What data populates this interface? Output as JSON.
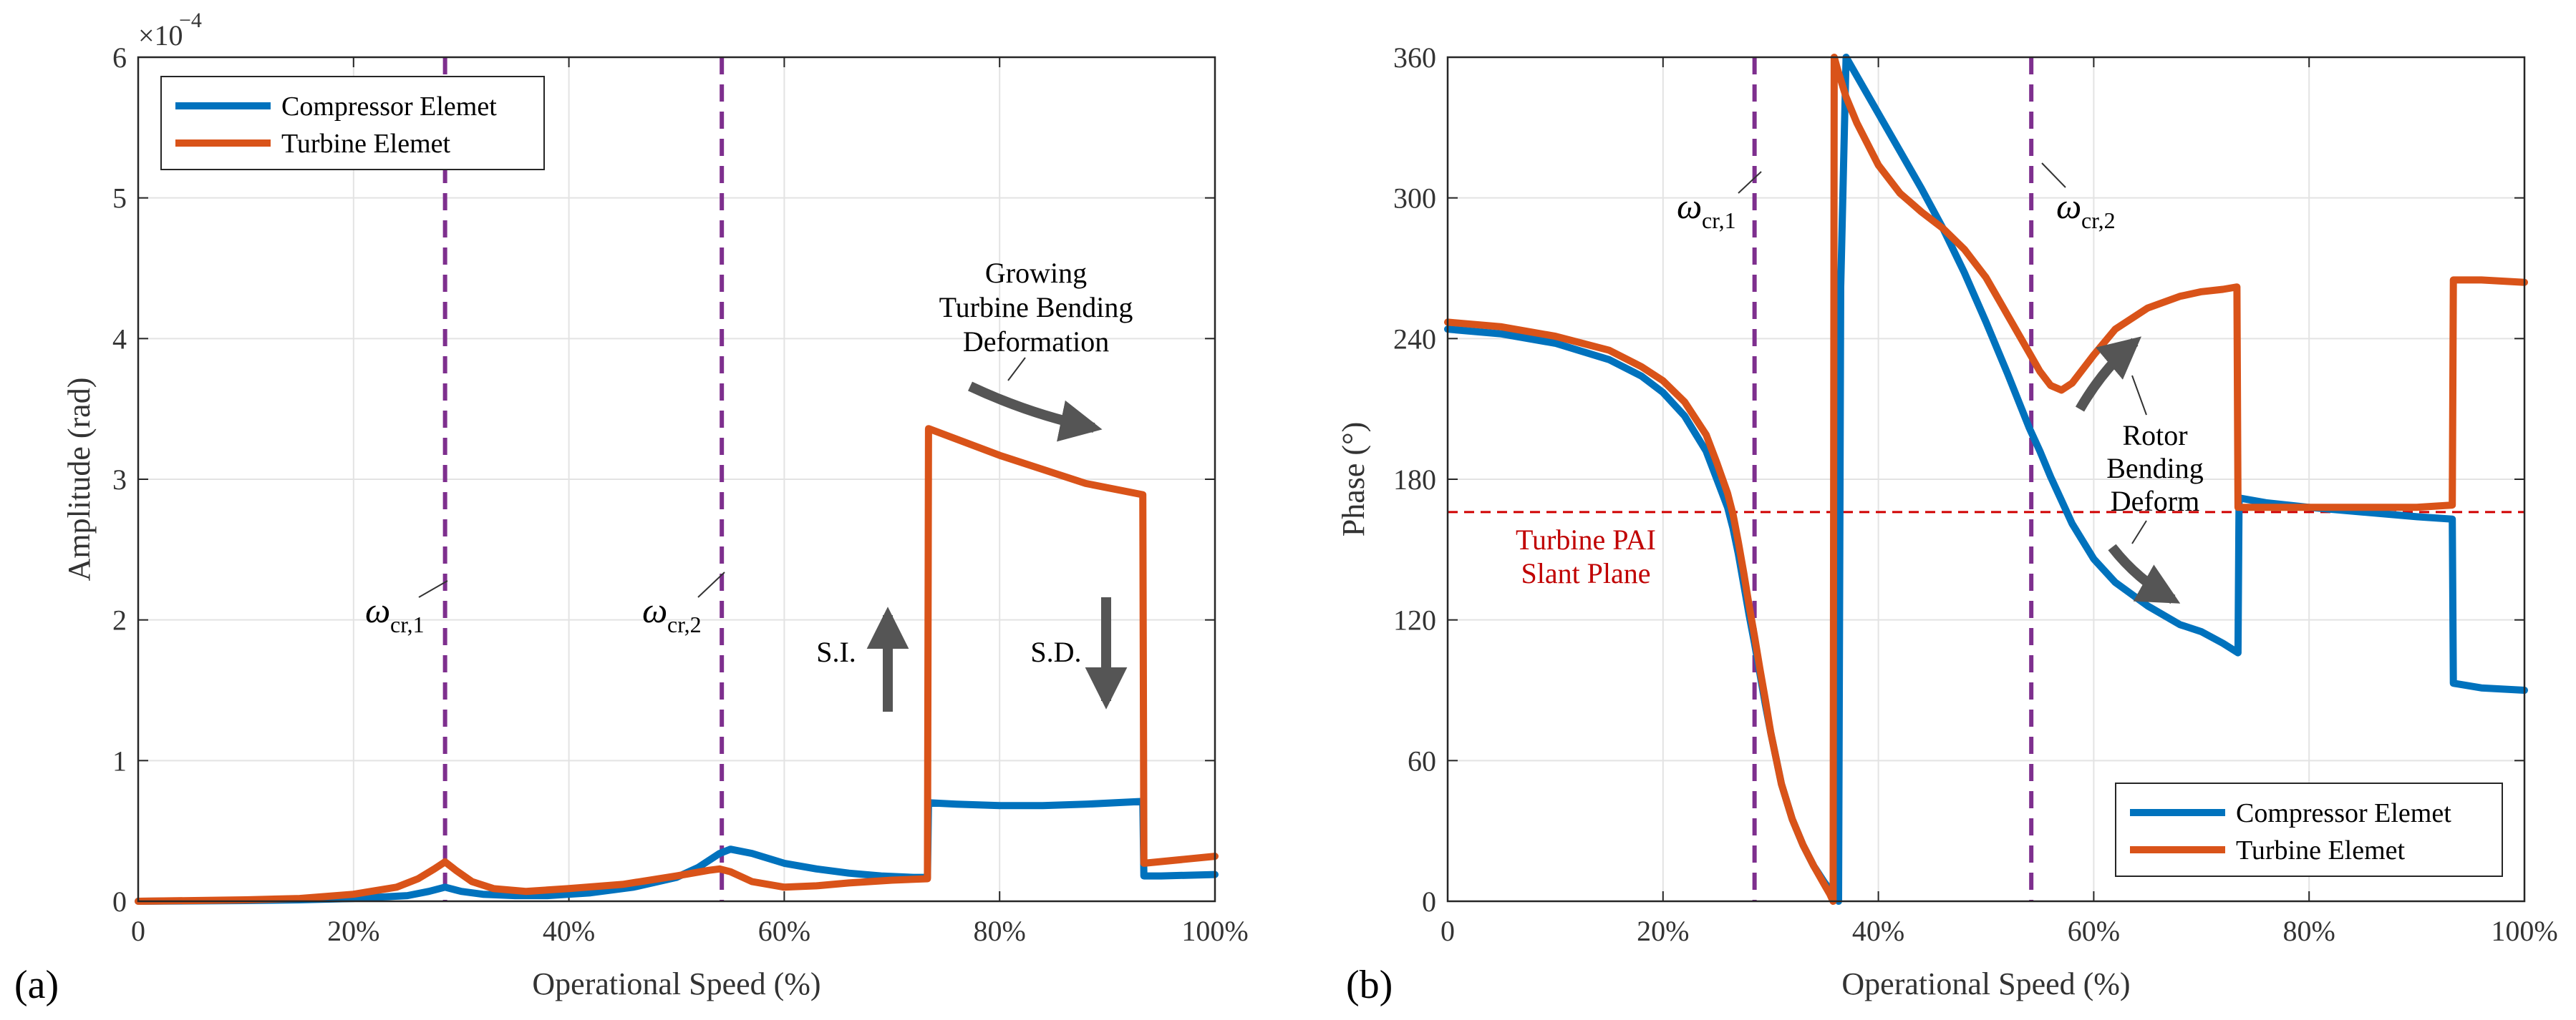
{
  "figure": {
    "panel_labels": [
      "(a)",
      "(b)"
    ]
  },
  "colors": {
    "compressor": "#0072BD",
    "turbine": "#D95319",
    "critical": "#7E2F8E",
    "pai": "#D00000",
    "arrow": "#555555",
    "grid": "#e3e3e3"
  },
  "chart_data": [
    {
      "type": "line",
      "panel": "(a)",
      "xlabel": "Operational Speed (%)",
      "ylabel": "Amplitude (rad)",
      "xlim": [
        0,
        100
      ],
      "ylim": [
        0,
        6
      ],
      "x_ticks": [
        "0",
        "20%",
        "40%",
        "60%",
        "80%",
        "100%"
      ],
      "y_ticks": [
        "0",
        "1",
        "2",
        "3",
        "4",
        "5",
        "6"
      ],
      "y_exponent": {
        "base": "×10",
        "power": "−4"
      },
      "grid": true,
      "legend_position": "top-left",
      "series": [
        {
          "name": "Compressor Elemet",
          "x": [
            0,
            10,
            15,
            20,
            25,
            27,
            28.5,
            30,
            32,
            35,
            38,
            42,
            46,
            50,
            52,
            54,
            55,
            57,
            60,
            63,
            66,
            69,
            72,
            73.3,
            73.4,
            76,
            80,
            84,
            88,
            93.3,
            93.4,
            95,
            100
          ],
          "y": [
            0,
            0.005,
            0.01,
            0.02,
            0.04,
            0.07,
            0.1,
            0.07,
            0.05,
            0.04,
            0.04,
            0.06,
            0.1,
            0.17,
            0.24,
            0.34,
            0.37,
            0.34,
            0.27,
            0.23,
            0.2,
            0.18,
            0.17,
            0.17,
            0.7,
            0.69,
            0.68,
            0.68,
            0.69,
            0.71,
            0.18,
            0.18,
            0.19
          ]
        },
        {
          "name": "Turbine Elemet",
          "x": [
            0,
            10,
            15,
            20,
            24,
            26,
            27.5,
            28.5,
            29.5,
            31,
            33,
            36,
            40,
            45,
            50,
            53,
            54,
            55,
            57,
            60,
            63,
            66,
            70,
            73.3,
            73.4,
            80,
            88,
            93.3,
            93.4,
            100
          ],
          "y": [
            0,
            0.01,
            0.02,
            0.05,
            0.1,
            0.16,
            0.23,
            0.28,
            0.22,
            0.14,
            0.09,
            0.07,
            0.09,
            0.12,
            0.18,
            0.22,
            0.23,
            0.21,
            0.14,
            0.1,
            0.11,
            0.13,
            0.15,
            0.16,
            3.36,
            3.17,
            2.97,
            2.89,
            0.27,
            0.32
          ]
        }
      ],
      "vlines": [
        {
          "x": 28.5,
          "label": "ω",
          "sub": "cr,1"
        },
        {
          "x": 54.2,
          "label": "ω",
          "sub": "cr,2"
        }
      ],
      "annotations": [
        {
          "id": "growing",
          "lines": [
            "Growing",
            "Turbine Bending",
            "Deformation"
          ]
        },
        {
          "id": "si",
          "text": "S.I."
        },
        {
          "id": "sd",
          "text": "S.D."
        }
      ]
    },
    {
      "type": "line",
      "panel": "(b)",
      "xlabel": "Operational Speed (%)",
      "ylabel": "Phase (°)",
      "xlim": [
        0,
        100
      ],
      "ylim": [
        0,
        360
      ],
      "x_ticks": [
        "0",
        "20%",
        "40%",
        "60%",
        "80%",
        "100%"
      ],
      "y_ticks": [
        "0",
        "60",
        "120",
        "180",
        "240",
        "300",
        "360"
      ],
      "grid": true,
      "legend_position": "bottom-right",
      "series": [
        {
          "name": "Compressor Elemet",
          "x": [
            0,
            5,
            10,
            15,
            18,
            20,
            22,
            24,
            25,
            26,
            26.5,
            27,
            27.5,
            28,
            28.5,
            29,
            29.5,
            30,
            31,
            32,
            33,
            34,
            35,
            35.5,
            36.2,
            36.3,
            36.5,
            37,
            38,
            40,
            42,
            44,
            46,
            48,
            50,
            52,
            54,
            55,
            56,
            57,
            58,
            60,
            62,
            65,
            68,
            70,
            72,
            73.4,
            73.5,
            76,
            80,
            85,
            90,
            93.3,
            93.4,
            96,
            100
          ],
          "y": [
            244,
            242,
            238,
            231,
            224,
            217,
            207,
            192,
            180,
            168,
            159,
            148,
            135,
            122,
            110,
            97,
            84,
            72,
            50,
            35,
            24,
            15,
            8,
            5,
            3,
            0,
            262,
            360,
            352,
            336,
            320,
            304,
            287,
            268,
            247,
            225,
            202,
            192,
            181,
            171,
            161,
            146,
            136,
            126,
            118,
            115,
            110,
            106,
            172,
            170,
            168,
            166,
            164,
            163,
            93,
            91,
            90
          ]
        },
        {
          "name": "Turbine Elemet",
          "x": [
            0,
            5,
            10,
            15,
            18,
            20,
            22,
            24,
            25,
            26,
            26.5,
            27,
            27.5,
            28,
            28.5,
            29,
            29.5,
            30,
            31,
            32,
            33,
            34,
            35,
            35.5,
            35.8,
            35.9,
            36.2,
            37,
            38,
            40,
            42,
            44,
            46,
            48,
            50,
            52,
            54,
            55,
            56,
            57,
            58,
            60,
            62,
            65,
            68,
            70,
            72,
            73.3,
            73.4,
            76,
            80,
            85,
            90,
            93.3,
            93.4,
            96,
            100
          ],
          "y": [
            247,
            245,
            241,
            235,
            228,
            222,
            213,
            199,
            187,
            174,
            165,
            153,
            140,
            126,
            113,
            99,
            86,
            72,
            50,
            35,
            24,
            15,
            7,
            3,
            0,
            360,
            355,
            343,
            332,
            314,
            302,
            294,
            287,
            278,
            266,
            250,
            234,
            226,
            220,
            218,
            221,
            233,
            244,
            253,
            258,
            260,
            261,
            262,
            168,
            168,
            168,
            168,
            168,
            169,
            265,
            265,
            264
          ]
        }
      ],
      "hlines": [
        {
          "y": 166,
          "label_lines": [
            "Turbine PAI",
            "Slant Plane"
          ]
        }
      ],
      "vlines": [
        {
          "x": 28.5,
          "label": "ω",
          "sub": "cr,1"
        },
        {
          "x": 54.2,
          "label": "ω",
          "sub": "cr,2"
        }
      ],
      "annotations": [
        {
          "id": "rotor",
          "lines": [
            "Rotor",
            "Bending",
            "Deform"
          ]
        }
      ]
    }
  ]
}
